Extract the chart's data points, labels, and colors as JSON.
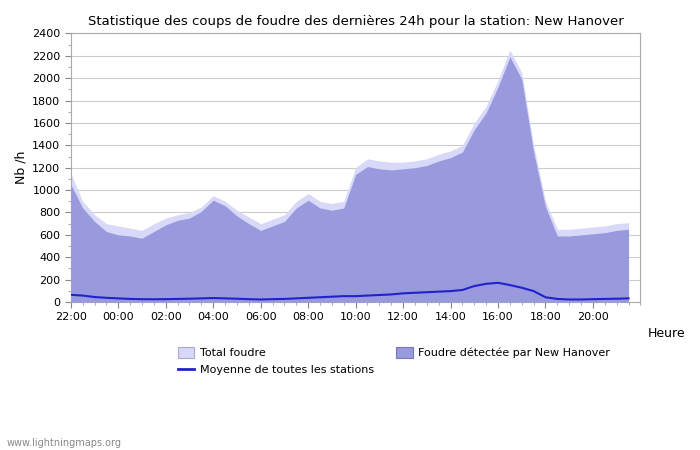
{
  "title": "Statistique des coups de foudre des dernières 24h pour la station: New Hanover",
  "xlabel": "Heure",
  "ylabel": "Nb /h",
  "watermark": "www.lightningmaps.org",
  "ylim": [
    0,
    2400
  ],
  "yticks": [
    0,
    200,
    400,
    600,
    800,
    1000,
    1200,
    1400,
    1600,
    1800,
    2000,
    2200,
    2400
  ],
  "xtick_labels": [
    "22:00",
    "00:00",
    "02:00",
    "04:00",
    "06:00",
    "08:00",
    "10:00",
    "12:00",
    "14:00",
    "16:00",
    "18:00",
    "20:00"
  ],
  "background_color": "#ffffff",
  "plot_bg_color": "#ffffff",
  "grid_color": "#cccccc",
  "total_foudre_color": "#d8d8f8",
  "detected_color": "#9999dd",
  "moyenne_color": "#2222cc",
  "legend_total": "Total foudre",
  "legend_moyenne": "Moyenne de toutes les stations",
  "legend_detected": "Foudre détectée par New Hanover",
  "x_positions": [
    0,
    0.5,
    1,
    1.5,
    2,
    2.5,
    3,
    3.5,
    4,
    4.5,
    5,
    5.5,
    6,
    6.5,
    7,
    7.5,
    8,
    8.5,
    9,
    9.5,
    10,
    10.5,
    11,
    11.5,
    12,
    12.5,
    13,
    13.5,
    14,
    14.5,
    15,
    15.5,
    16,
    16.5,
    17,
    17.5,
    18,
    18.5,
    19,
    19.5,
    20,
    20.5,
    21,
    21.5,
    22,
    22.5,
    23,
    23.5
  ],
  "total_foudre": [
    1150,
    900,
    780,
    700,
    680,
    660,
    640,
    700,
    750,
    780,
    800,
    850,
    950,
    900,
    820,
    760,
    700,
    740,
    780,
    900,
    970,
    900,
    880,
    900,
    1200,
    1280,
    1260,
    1250,
    1250,
    1260,
    1280,
    1320,
    1350,
    1400,
    1600,
    1750,
    1980,
    2250,
    2050,
    1400,
    900,
    650,
    650,
    660,
    670,
    680,
    700,
    710
  ],
  "detected": [
    1050,
    840,
    720,
    630,
    600,
    590,
    570,
    630,
    690,
    730,
    750,
    810,
    910,
    860,
    770,
    700,
    640,
    680,
    720,
    840,
    910,
    840,
    820,
    840,
    1140,
    1210,
    1190,
    1180,
    1190,
    1200,
    1220,
    1260,
    1290,
    1340,
    1540,
    1690,
    1920,
    2190,
    1990,
    1340,
    850,
    590,
    590,
    600,
    610,
    620,
    640,
    650
  ],
  "moyenne": [
    65,
    58,
    45,
    38,
    33,
    28,
    26,
    25,
    26,
    28,
    30,
    33,
    36,
    33,
    30,
    26,
    23,
    26,
    28,
    33,
    38,
    43,
    48,
    53,
    53,
    58,
    63,
    68,
    78,
    83,
    88,
    93,
    98,
    108,
    143,
    163,
    172,
    152,
    128,
    98,
    43,
    28,
    23,
    23,
    26,
    28,
    30,
    33
  ]
}
